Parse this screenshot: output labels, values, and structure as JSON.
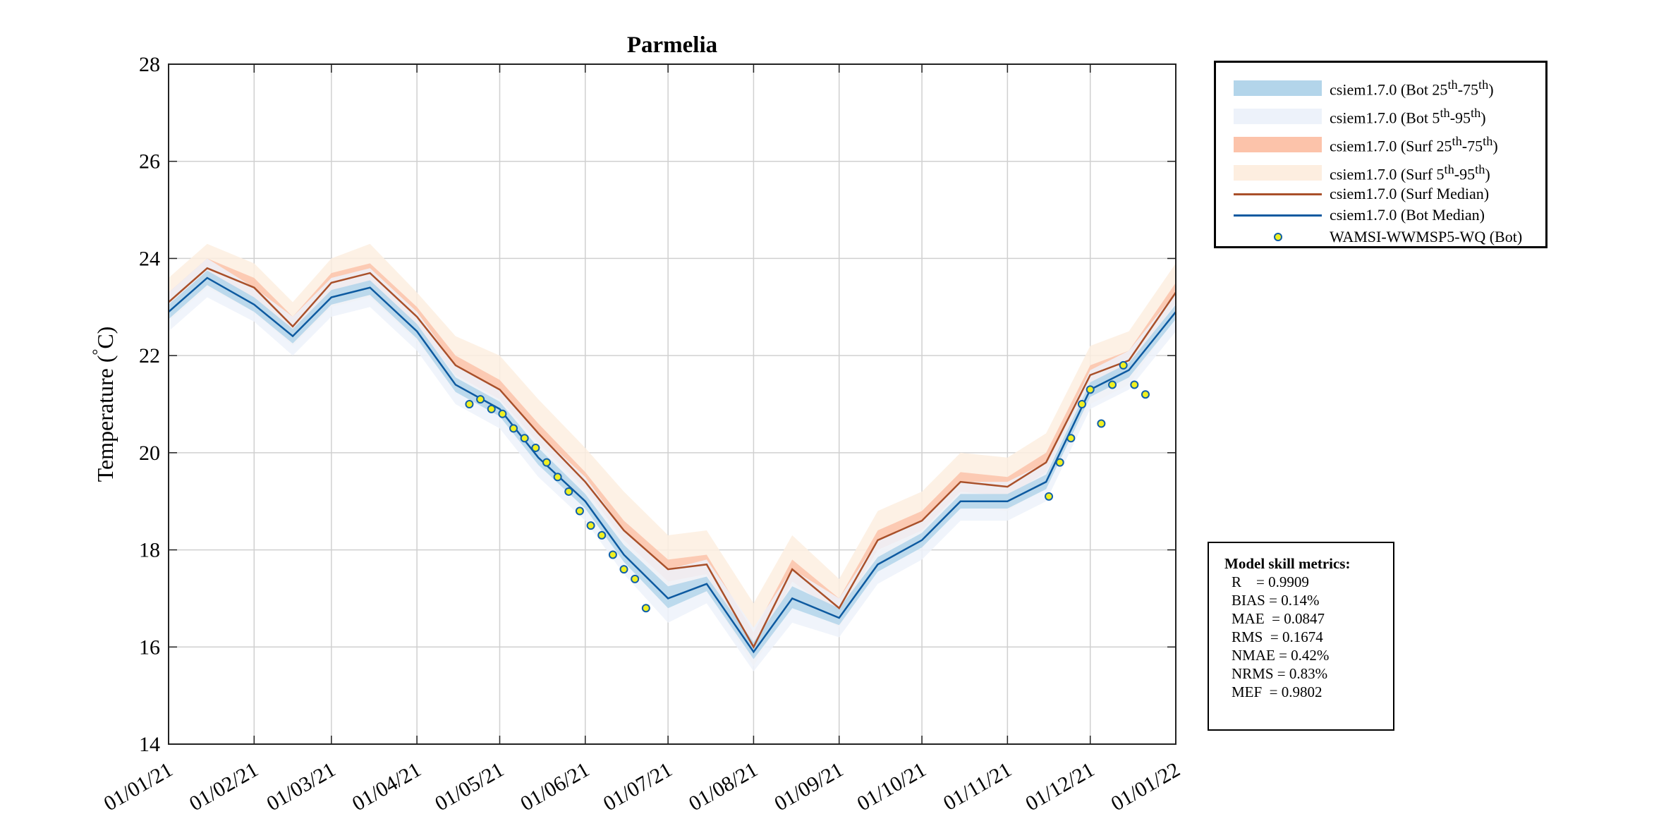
{
  "chart_data": {
    "type": "line",
    "title": "Parmelia",
    "ylabel": "Temperature (°C)",
    "ylabel_main": "Temperature (",
    "ylabel_deg": "°",
    "ylabel_unit": "C)",
    "xlim": [
      "2021-01-01",
      "2022-01-01"
    ],
    "ylim": [
      14,
      28
    ],
    "yticks": [
      14,
      16,
      18,
      20,
      22,
      24,
      26,
      28
    ],
    "xticks": [
      "2021-01-01",
      "2021-02-01",
      "2021-03-01",
      "2021-04-01",
      "2021-05-01",
      "2021-06-01",
      "2021-07-01",
      "2021-08-01",
      "2021-09-01",
      "2021-10-01",
      "2021-11-01",
      "2021-12-01",
      "2022-01-01"
    ],
    "xtick_labels": [
      "01/01/21",
      "01/02/21",
      "01/03/21",
      "01/04/21",
      "01/05/21",
      "01/06/21",
      "01/07/21",
      "01/08/21",
      "01/09/21",
      "01/10/21",
      "01/11/21",
      "01/12/21",
      "01/01/22"
    ],
    "grid": true,
    "legend_placement": "outside-top-right",
    "colors": {
      "bot_25_75": "#b3d5ea",
      "bot_5_95": "#edf2fa",
      "surf_25_75": "#fcc3aa",
      "surf_5_95": "#fdeee0",
      "surf_median": "#a9502a",
      "bot_median": "#0d5aa0",
      "obs_fill": "#f0f020",
      "obs_edge": "#1060a8"
    },
    "x": [
      "2021-01-01",
      "2021-01-15",
      "2021-02-01",
      "2021-02-15",
      "2021-03-01",
      "2021-03-15",
      "2021-04-01",
      "2021-04-15",
      "2021-05-01",
      "2021-05-15",
      "2021-06-01",
      "2021-06-15",
      "2021-07-01",
      "2021-07-15",
      "2021-08-01",
      "2021-08-15",
      "2021-09-01",
      "2021-09-15",
      "2021-10-01",
      "2021-10-15",
      "2021-11-01",
      "2021-11-15",
      "2021-12-01",
      "2021-12-15",
      "2022-01-01"
    ],
    "series": [
      {
        "name": "csiem1.7.0 (Surf 5th-95th)",
        "kind": "band",
        "low": [
          22.7,
          23.4,
          22.9,
          22.2,
          23.0,
          23.2,
          22.3,
          21.3,
          20.8,
          19.9,
          19.0,
          17.9,
          17.0,
          17.2,
          15.6,
          17.0,
          16.4,
          17.7,
          18.1,
          18.9,
          18.8,
          19.3,
          21.0,
          21.4,
          22.8
        ],
        "high": [
          23.6,
          24.3,
          23.9,
          23.1,
          24.0,
          24.3,
          23.3,
          22.4,
          22.0,
          21.1,
          20.1,
          19.2,
          18.3,
          18.4,
          16.9,
          18.3,
          17.4,
          18.8,
          19.2,
          20.0,
          19.9,
          20.4,
          22.2,
          22.5,
          23.9
        ]
      },
      {
        "name": "csiem1.7.0 (Surf 25th-75th)",
        "kind": "band",
        "low": [
          22.95,
          23.65,
          23.2,
          22.45,
          23.3,
          23.5,
          22.6,
          21.6,
          21.1,
          20.2,
          19.25,
          18.2,
          17.35,
          17.5,
          15.8,
          17.35,
          16.65,
          18.0,
          18.4,
          19.2,
          19.1,
          19.6,
          21.4,
          21.7,
          23.1
        ],
        "high": [
          23.3,
          24.0,
          23.6,
          22.8,
          23.7,
          23.9,
          23.0,
          22.0,
          21.5,
          20.6,
          19.6,
          18.6,
          17.8,
          17.9,
          16.3,
          17.8,
          17.0,
          18.4,
          18.8,
          19.6,
          19.5,
          20.0,
          21.8,
          22.1,
          23.5
        ]
      },
      {
        "name": "csiem1.7.0 (Bot 5th-95th)",
        "kind": "band",
        "low": [
          22.5,
          23.2,
          22.7,
          22.0,
          22.8,
          23.0,
          22.1,
          21.0,
          20.5,
          19.5,
          18.6,
          17.5,
          16.5,
          16.9,
          15.5,
          16.5,
          16.2,
          17.3,
          17.8,
          18.6,
          18.6,
          19.0,
          20.9,
          21.3,
          22.5
        ],
        "high": [
          23.3,
          24.0,
          23.4,
          22.8,
          23.6,
          23.8,
          22.9,
          21.8,
          21.3,
          20.4,
          19.5,
          18.4,
          17.6,
          17.8,
          16.4,
          17.6,
          17.0,
          18.2,
          18.6,
          19.4,
          19.4,
          19.8,
          21.7,
          22.1,
          23.3
        ]
      },
      {
        "name": "csiem1.7.0 (Bot 25th-75th)",
        "kind": "band",
        "low": [
          22.75,
          23.45,
          22.9,
          22.25,
          23.05,
          23.25,
          22.35,
          21.25,
          20.75,
          19.75,
          18.85,
          17.75,
          16.8,
          17.15,
          15.75,
          16.8,
          16.45,
          17.55,
          18.05,
          18.85,
          18.85,
          19.25,
          21.15,
          21.55,
          22.75
        ],
        "high": [
          23.05,
          23.75,
          23.2,
          22.55,
          23.35,
          23.55,
          22.65,
          21.55,
          21.05,
          20.1,
          19.15,
          18.1,
          17.25,
          17.45,
          16.1,
          17.25,
          16.8,
          17.85,
          18.35,
          19.15,
          19.15,
          19.55,
          21.45,
          21.85,
          23.05
        ]
      },
      {
        "name": "csiem1.7.0 (Surf Median)",
        "kind": "line",
        "values": [
          23.1,
          23.8,
          23.4,
          22.6,
          23.5,
          23.7,
          22.8,
          21.8,
          21.3,
          20.4,
          19.4,
          18.4,
          17.6,
          17.7,
          16.0,
          17.6,
          16.8,
          18.2,
          18.6,
          19.4,
          19.3,
          19.8,
          21.6,
          21.9,
          23.3
        ]
      },
      {
        "name": "csiem1.7.0 (Bot Median)",
        "kind": "line",
        "values": [
          22.9,
          23.6,
          23.05,
          22.4,
          23.2,
          23.4,
          22.5,
          21.4,
          20.9,
          19.9,
          19.0,
          17.9,
          17.0,
          17.3,
          15.9,
          17.0,
          16.6,
          17.7,
          18.2,
          19.0,
          19.0,
          19.4,
          21.3,
          21.7,
          22.9
        ]
      },
      {
        "name": "WAMSI-WWMSP5-WQ (Bot)",
        "kind": "scatter",
        "x": [
          "2021-04-20",
          "2021-04-24",
          "2021-04-28",
          "2021-05-02",
          "2021-05-06",
          "2021-05-10",
          "2021-05-14",
          "2021-05-18",
          "2021-05-22",
          "2021-05-26",
          "2021-05-30",
          "2021-06-03",
          "2021-06-07",
          "2021-06-11",
          "2021-06-15",
          "2021-06-19",
          "2021-06-23",
          "2021-11-16",
          "2021-11-20",
          "2021-11-24",
          "2021-11-28",
          "2021-12-01",
          "2021-12-05",
          "2021-12-09",
          "2021-12-13",
          "2021-12-17",
          "2021-12-21"
        ],
        "values": [
          21.0,
          21.1,
          20.9,
          20.8,
          20.5,
          20.3,
          20.1,
          19.8,
          19.5,
          19.2,
          18.8,
          18.5,
          18.3,
          17.9,
          17.6,
          17.4,
          16.8,
          19.1,
          19.8,
          20.3,
          21.0,
          21.3,
          20.6,
          21.4,
          21.8,
          21.4,
          21.2
        ]
      }
    ]
  },
  "legend": {
    "items": [
      {
        "base": "csiem1.7.0 (Bot 25",
        "s1": "th",
        "mid": "-75",
        "s2": "th",
        "end": ")"
      },
      {
        "base": "csiem1.7.0 (Bot 5",
        "s1": "th",
        "mid": "-95",
        "s2": "th",
        "end": ")"
      },
      {
        "base": "csiem1.7.0 (Surf 25",
        "s1": "th",
        "mid": "-75",
        "s2": "th",
        "end": ")"
      },
      {
        "base": "csiem1.7.0 (Surf 5",
        "s1": "th",
        "mid": "-95",
        "s2": "th",
        "end": ")"
      },
      {
        "base": "csiem1.7.0 (Surf Median)"
      },
      {
        "base": "csiem1.7.0 (Bot Median)"
      },
      {
        "base": "WAMSI-WWMSP5-WQ (Bot)"
      }
    ]
  },
  "metrics": {
    "title": "Model skill metrics:",
    "lines": [
      "R    = 0.9909",
      "BIAS = 0.14%",
      "MAE  = 0.0847",
      "RMS  = 0.1674",
      "NMAE = 0.42%",
      "NRMS = 0.83%",
      "MEF  = 0.9802"
    ]
  }
}
